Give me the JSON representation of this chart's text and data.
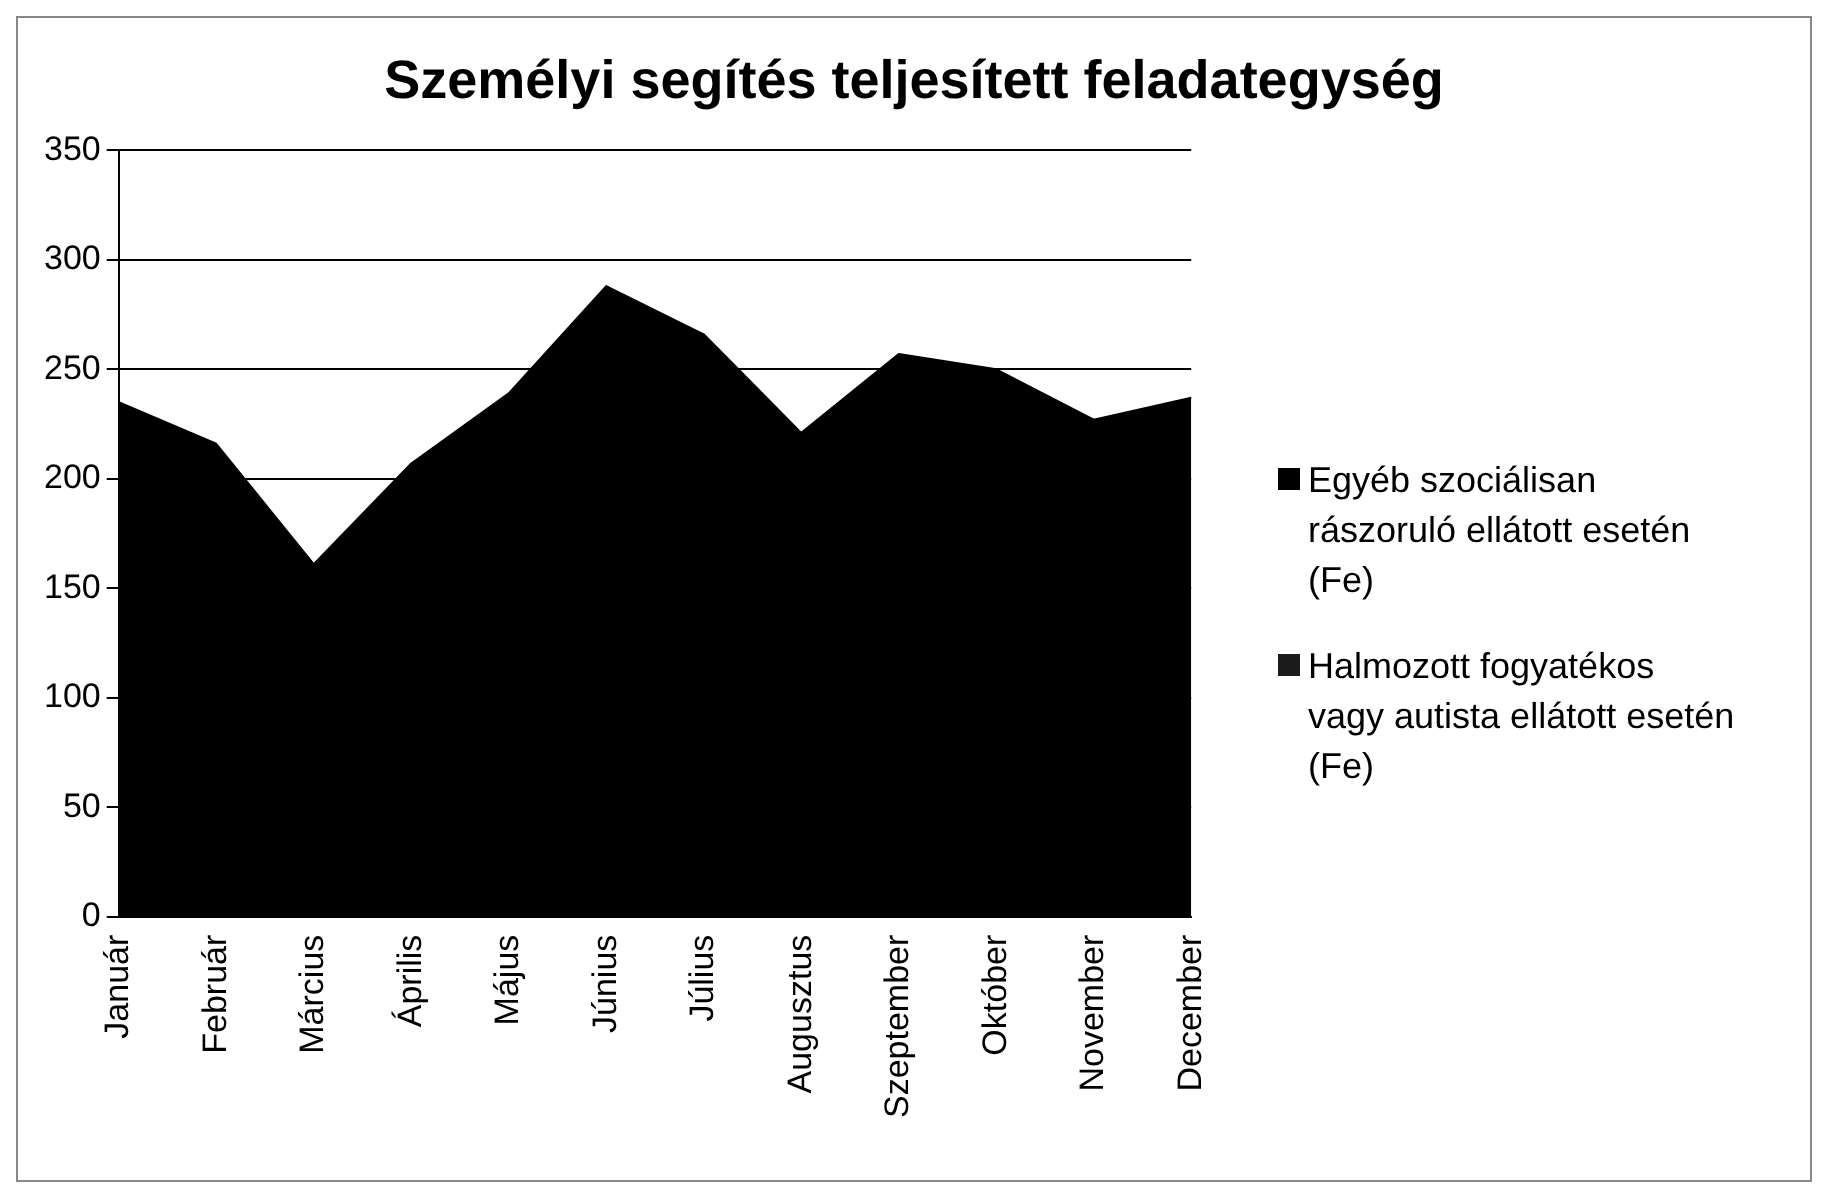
{
  "chart_data": {
    "type": "area",
    "title": "Személyi segítés teljesített feladategység",
    "categories": [
      "Január",
      "Február",
      "Március",
      "Április",
      "Május",
      "Június",
      "Július",
      "Augusztus",
      "Szeptember",
      "Október",
      "November",
      "December"
    ],
    "series": [
      {
        "name": "Egyéb szociálisan rászoruló ellátott esetén (Fe)",
        "color": "#000000",
        "values": [
          235,
          216,
          161,
          207,
          239,
          288,
          266,
          221,
          257,
          250,
          227,
          237
        ]
      },
      {
        "name": "Halmozott fogyatékos vagy autista ellátott esetén    (Fe)",
        "color": "#1c1c1c",
        "values": [
          null,
          null,
          null,
          null,
          null,
          null,
          null,
          null,
          null,
          null,
          null,
          null
        ]
      }
    ],
    "ylim": [
      0,
      350
    ],
    "yticks": [
      0,
      50,
      100,
      150,
      200,
      250,
      300,
      350
    ],
    "grid": "y",
    "legend": "right"
  }
}
